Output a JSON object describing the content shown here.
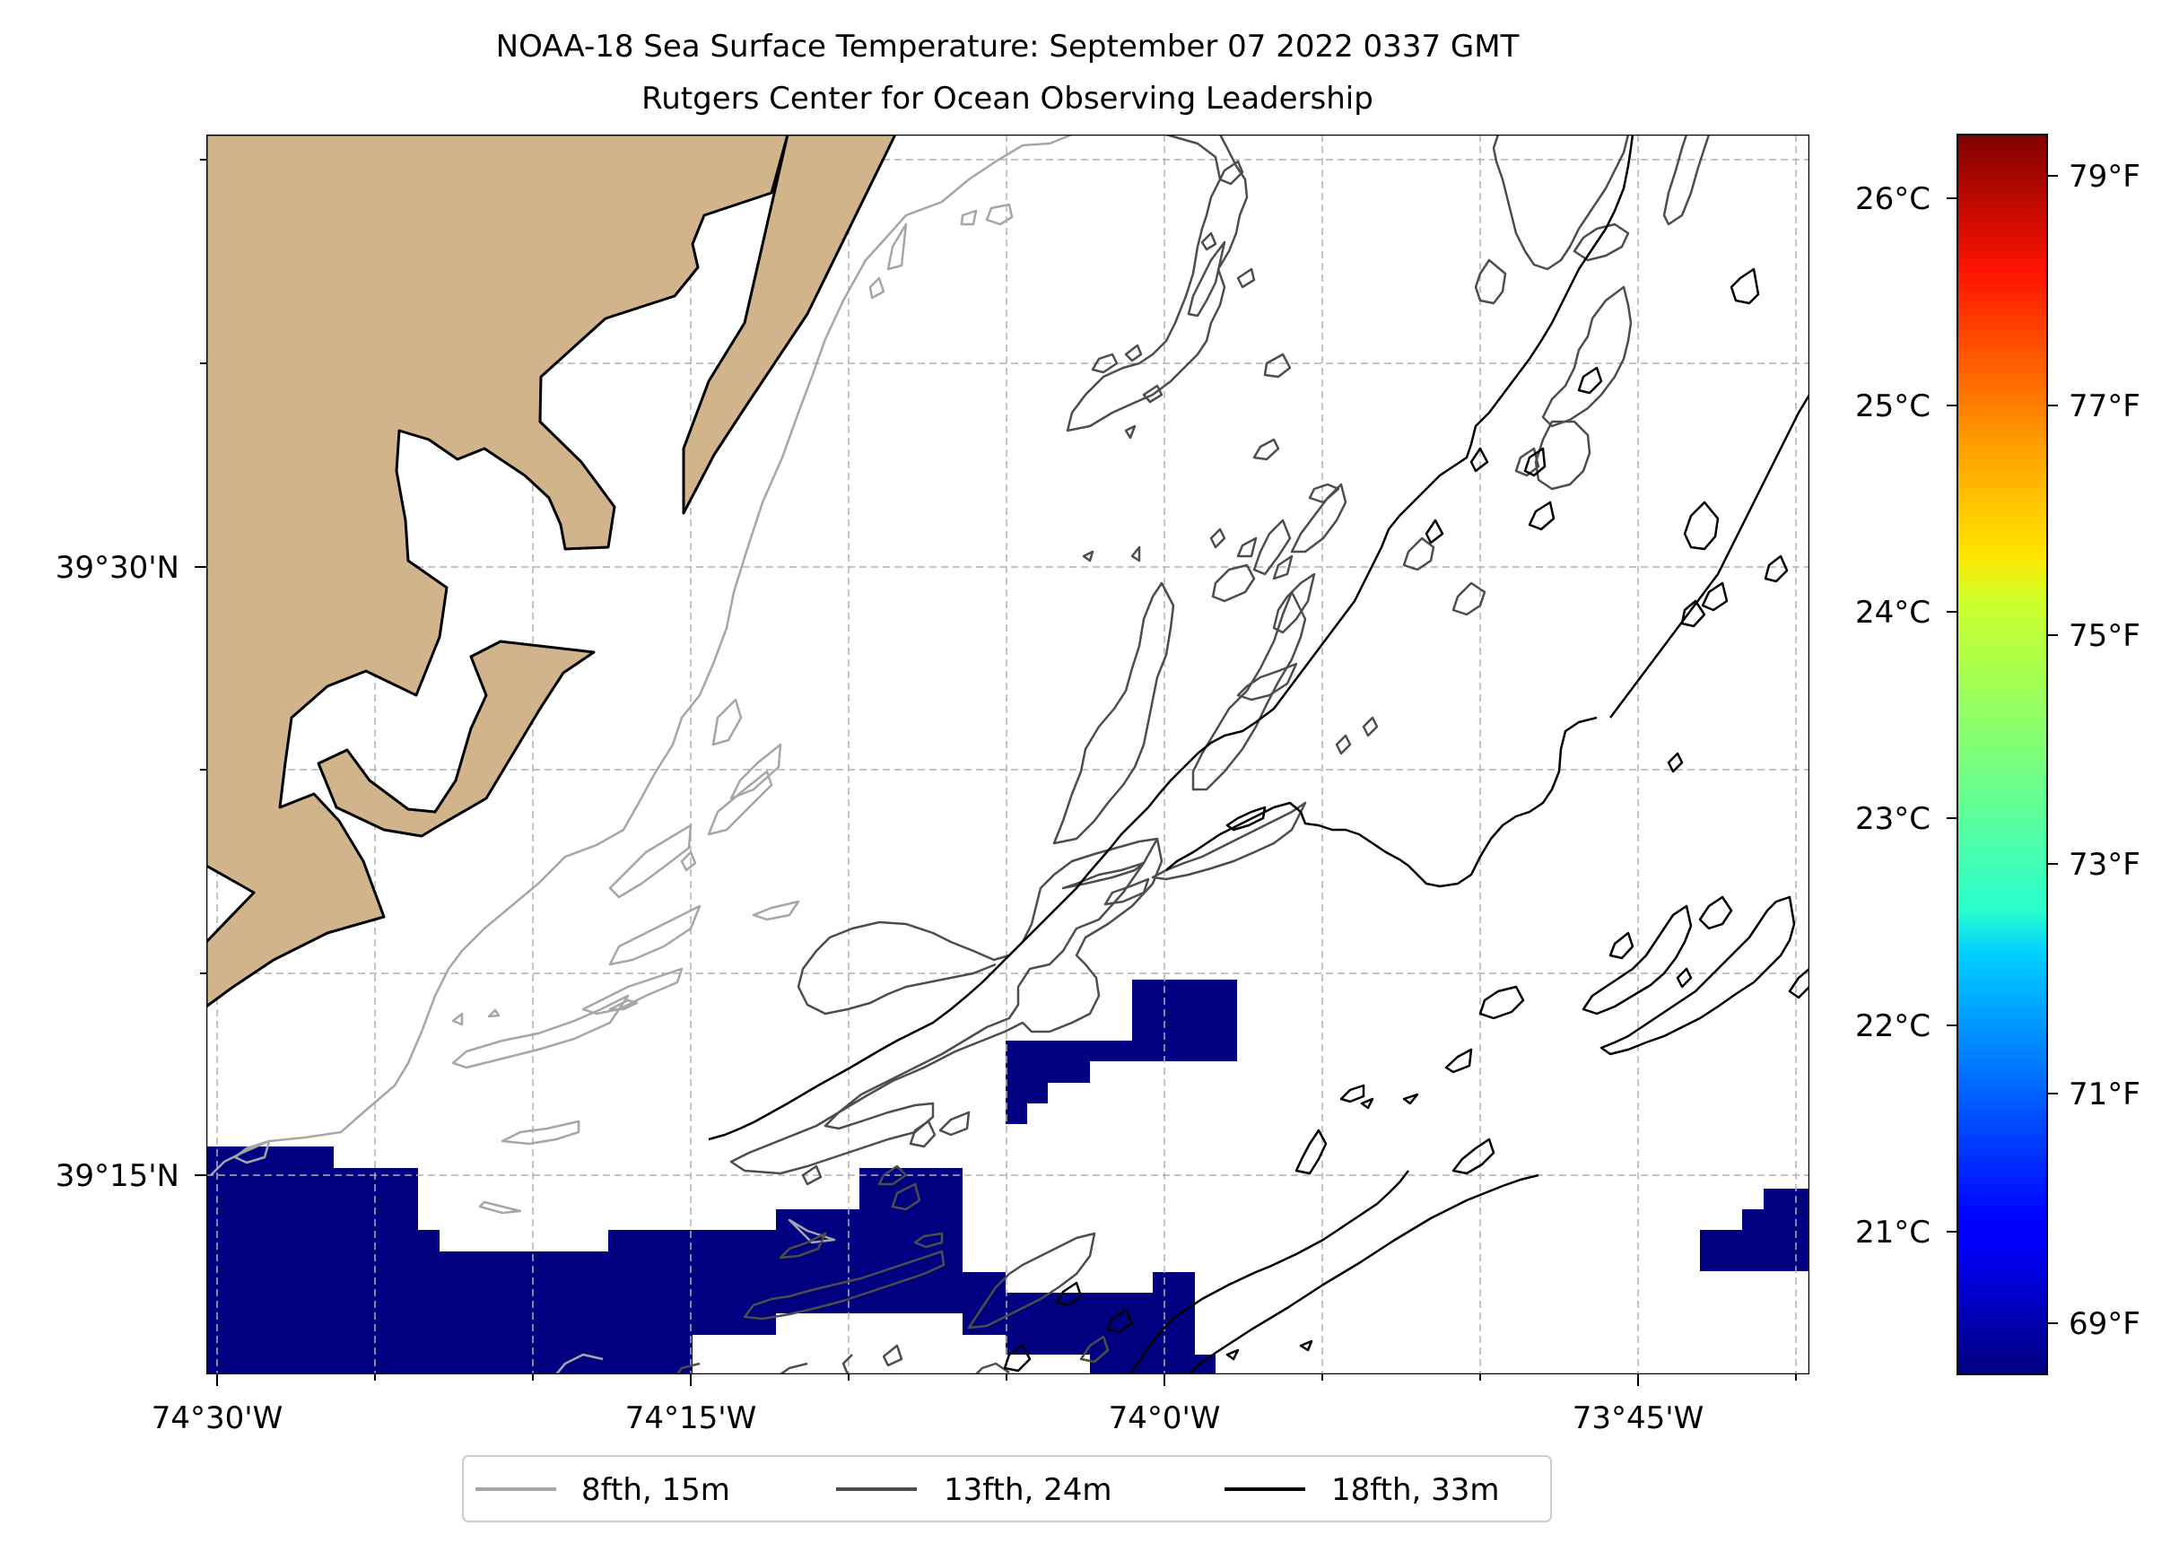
{
  "title": {
    "line1": "NOAA-18 Sea Surface Temperature: September 07 2022 0337 GMT",
    "line2": "Rutgers Center for Ocean Observing Leadership"
  },
  "map": {
    "lon_labels": [
      "74°30'W",
      "74°15'W",
      "74°0'W",
      "73°45'W"
    ],
    "lat_labels": [
      "39°30'N",
      "39°15'N"
    ],
    "colors": {
      "land": "#d2b48c",
      "coast": "#000000",
      "sst_cold": "#000080",
      "grid": "#b0b0b0",
      "contour_8": "#a6a6a6",
      "contour_13": "#4d4d4d",
      "contour_18": "#000000"
    }
  },
  "colorbar": {
    "celsius_labels": [
      "26°C",
      "25°C",
      "24°C",
      "23°C",
      "22°C",
      "21°C"
    ],
    "fahrenheit_labels": [
      "79°F",
      "77°F",
      "75°F",
      "73°F",
      "71°F",
      "69°F"
    ],
    "colormap": "jet"
  },
  "legend": {
    "items": [
      {
        "label": "8fth, 15m",
        "color": "#a6a6a6"
      },
      {
        "label": "13fth, 24m",
        "color": "#4d4d4d"
      },
      {
        "label": "18fth, 33m",
        "color": "#000000"
      }
    ]
  }
}
